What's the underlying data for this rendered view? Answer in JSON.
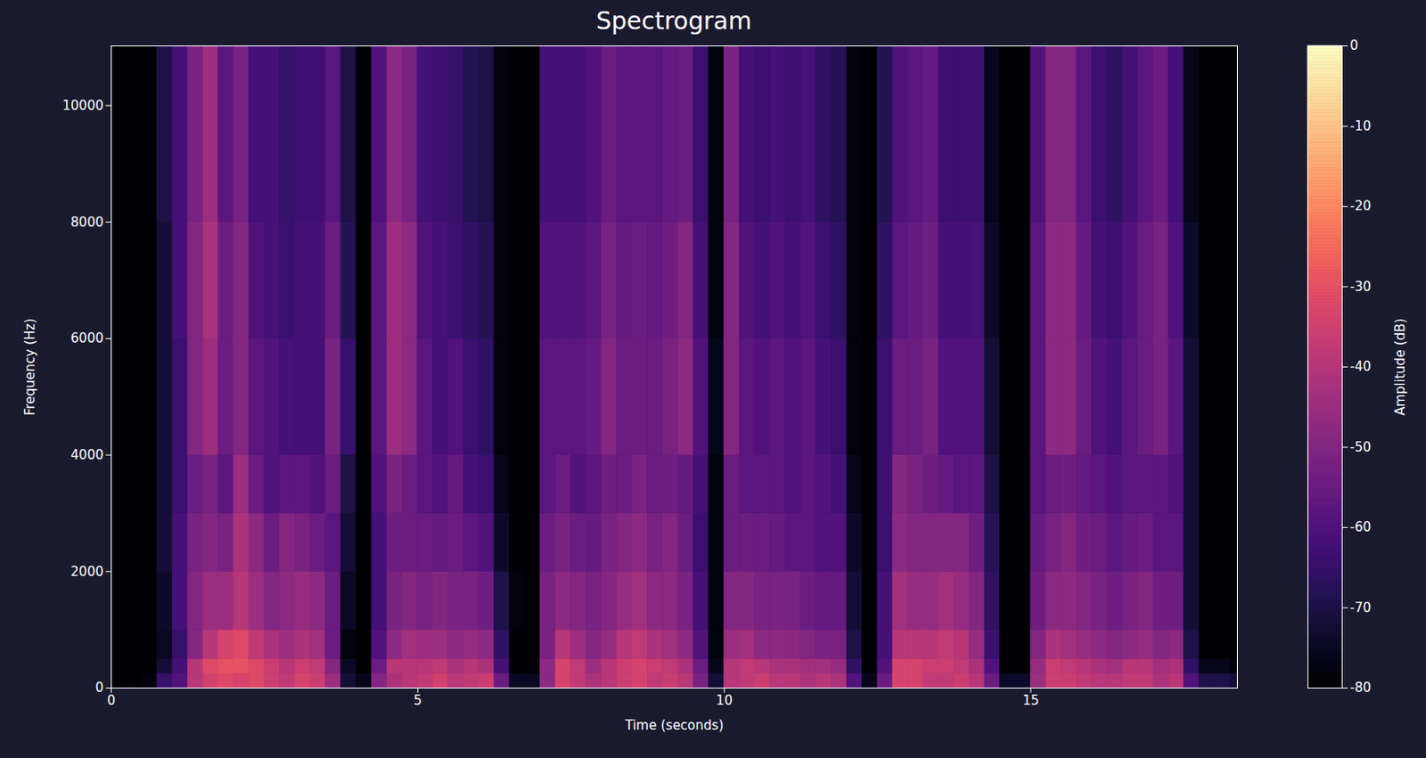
{
  "chart_data": {
    "type": "heatmap",
    "title": "Spectrogram",
    "x_label": "Time (seconds)",
    "y_label": "Frequency (Hz)",
    "xlim": [
      0,
      18.37
    ],
    "ylim": [
      0,
      11025
    ],
    "xticks": [
      0,
      5,
      10,
      15
    ],
    "yticks": [
      0,
      2000,
      4000,
      6000,
      8000,
      10000
    ],
    "color": "magma",
    "clim": [
      -80,
      0
    ],
    "cticks": [
      -80,
      -70,
      -60,
      -50,
      -40,
      -30,
      -20,
      -10,
      0
    ],
    "colorbar_label": "Amplitude (dB)",
    "time_bins": [
      0,
      0.25,
      0.5,
      0.75,
      1,
      1.25,
      1.5,
      1.75,
      2,
      2.25,
      2.5,
      2.75,
      3,
      3.25,
      3.5,
      3.75,
      4,
      4.25,
      4.5,
      4.75,
      5,
      5.25,
      5.5,
      5.75,
      6,
      6.25,
      6.5,
      6.75,
      7,
      7.25,
      7.5,
      7.75,
      8,
      8.25,
      8.5,
      8.75,
      9,
      9.25,
      9.5,
      9.75,
      10,
      10.25,
      10.5,
      10.75,
      11,
      11.25,
      11.5,
      11.75,
      12,
      12.25,
      12.5,
      12.75,
      13,
      13.25,
      13.5,
      13.75,
      14,
      14.25,
      14.5,
      14.75,
      15,
      15.25,
      15.5,
      15.75,
      16,
      16.25,
      16.5,
      16.75,
      17,
      17.25,
      17.5,
      17.75,
      18,
      18.25,
      18.37
    ],
    "freq_bins": [
      0,
      250,
      500,
      1000,
      2000,
      3000,
      4000,
      6000,
      8000,
      11025
    ],
    "values": [
      [
        -80,
        -80,
        -80,
        -80,
        -80,
        -80,
        -80,
        -80,
        -80
      ],
      [
        -80,
        -80,
        -80,
        -80,
        -80,
        -80,
        -80,
        -80,
        -80
      ],
      [
        -78,
        -80,
        -80,
        -80,
        -80,
        -80,
        -80,
        -80,
        -80
      ],
      [
        -65,
        -72,
        -75,
        -74,
        -72,
        -72,
        -72,
        -72,
        -70
      ],
      [
        -60,
        -62,
        -65,
        -62,
        -62,
        -64,
        -64,
        -62,
        -62
      ],
      [
        -40,
        -40,
        -50,
        -50,
        -52,
        -55,
        -50,
        -50,
        -52
      ],
      [
        -35,
        -32,
        -40,
        -45,
        -50,
        -52,
        -45,
        -42,
        -45
      ],
      [
        -32,
        -30,
        -34,
        -45,
        -52,
        -58,
        -55,
        -55,
        -58
      ],
      [
        -34,
        -30,
        -32,
        -40,
        -42,
        -45,
        -50,
        -50,
        -52
      ],
      [
        -32,
        -32,
        -38,
        -45,
        -48,
        -55,
        -58,
        -60,
        -62
      ],
      [
        -36,
        -36,
        -42,
        -50,
        -55,
        -60,
        -60,
        -62,
        -62
      ],
      [
        -38,
        -40,
        -45,
        -48,
        -50,
        -58,
        -62,
        -64,
        -65
      ],
      [
        -34,
        -36,
        -42,
        -46,
        -52,
        -58,
        -62,
        -62,
        -63
      ],
      [
        -36,
        -38,
        -44,
        -48,
        -55,
        -60,
        -62,
        -62,
        -63
      ],
      [
        -45,
        -50,
        -55,
        -55,
        -58,
        -55,
        -52,
        -55,
        -58
      ],
      [
        -72,
        -75,
        -78,
        -75,
        -72,
        -70,
        -65,
        -68,
        -70
      ],
      [
        -76,
        -80,
        -80,
        -80,
        -80,
        -80,
        -80,
        -80,
        -80
      ],
      [
        -50,
        -55,
        -60,
        -62,
        -62,
        -60,
        -58,
        -58,
        -60
      ],
      [
        -42,
        -40,
        -48,
        -52,
        -54,
        -52,
        -45,
        -45,
        -48
      ],
      [
        -40,
        -40,
        -44,
        -50,
        -55,
        -55,
        -48,
        -48,
        -52
      ],
      [
        -38,
        -40,
        -45,
        -52,
        -55,
        -58,
        -58,
        -60,
        -62
      ],
      [
        -35,
        -38,
        -45,
        -50,
        -56,
        -60,
        -62,
        -62,
        -64
      ],
      [
        -40,
        -42,
        -48,
        -52,
        -55,
        -56,
        -60,
        -64,
        -65
      ],
      [
        -38,
        -40,
        -46,
        -52,
        -58,
        -62,
        -64,
        -66,
        -68
      ],
      [
        -36,
        -42,
        -48,
        -54,
        -60,
        -64,
        -66,
        -68,
        -70
      ],
      [
        -55,
        -62,
        -66,
        -70,
        -74,
        -76,
        -78,
        -78,
        -78
      ],
      [
        -75,
        -80,
        -80,
        -78,
        -80,
        -80,
        -80,
        -80,
        -80
      ],
      [
        -75,
        -80,
        -80,
        -80,
        -80,
        -80,
        -80,
        -80,
        -80
      ],
      [
        -48,
        -48,
        -52,
        -52,
        -55,
        -58,
        -58,
        -60,
        -62
      ],
      [
        -34,
        -34,
        -40,
        -48,
        -52,
        -55,
        -58,
        -60,
        -62
      ],
      [
        -38,
        -38,
        -45,
        -50,
        -55,
        -60,
        -58,
        -60,
        -62
      ],
      [
        -42,
        -45,
        -50,
        -52,
        -56,
        -58,
        -56,
        -58,
        -60
      ],
      [
        -40,
        -40,
        -46,
        -50,
        -52,
        -54,
        -50,
        -52,
        -55
      ],
      [
        -36,
        -36,
        -40,
        -46,
        -50,
        -55,
        -55,
        -56,
        -58
      ],
      [
        -34,
        -34,
        -38,
        -44,
        -48,
        -52,
        -55,
        -55,
        -58
      ],
      [
        -38,
        -36,
        -42,
        -48,
        -52,
        -55,
        -55,
        -56,
        -58
      ],
      [
        -36,
        -38,
        -44,
        -48,
        -50,
        -54,
        -52,
        -54,
        -56
      ],
      [
        -40,
        -42,
        -48,
        -52,
        -55,
        -56,
        -48,
        -50,
        -55
      ],
      [
        -52,
        -55,
        -60,
        -62,
        -64,
        -62,
        -60,
        -62,
        -64
      ],
      [
        -72,
        -76,
        -78,
        -78,
        -78,
        -78,
        -76,
        -78,
        -78
      ],
      [
        -40,
        -40,
        -45,
        -50,
        -55,
        -55,
        -50,
        -50,
        -52
      ],
      [
        -38,
        -38,
        -44,
        -50,
        -55,
        -58,
        -58,
        -60,
        -62
      ],
      [
        -36,
        -40,
        -48,
        -52,
        -55,
        -58,
        -60,
        -62,
        -64
      ],
      [
        -40,
        -42,
        -48,
        -52,
        -56,
        -58,
        -58,
        -60,
        -62
      ],
      [
        -40,
        -42,
        -48,
        -52,
        -58,
        -60,
        -60,
        -62,
        -64
      ],
      [
        -42,
        -44,
        -50,
        -55,
        -58,
        -58,
        -58,
        -60,
        -62
      ],
      [
        -40,
        -44,
        -52,
        -56,
        -60,
        -60,
        -62,
        -64,
        -66
      ],
      [
        -42,
        -46,
        -52,
        -56,
        -60,
        -62,
        -64,
        -66,
        -68
      ],
      [
        -60,
        -66,
        -70,
        -72,
        -74,
        -76,
        -78,
        -78,
        -78
      ],
      [
        -76,
        -80,
        -80,
        -80,
        -80,
        -80,
        -80,
        -80,
        -80
      ],
      [
        -55,
        -60,
        -62,
        -62,
        -64,
        -64,
        -64,
        -66,
        -68
      ],
      [
        -34,
        -34,
        -40,
        -44,
        -48,
        -50,
        -55,
        -58,
        -60
      ],
      [
        -34,
        -34,
        -40,
        -46,
        -50,
        -52,
        -55,
        -56,
        -58
      ],
      [
        -38,
        -36,
        -40,
        -46,
        -50,
        -54,
        -52,
        -54,
        -56
      ],
      [
        -38,
        -36,
        -38,
        -44,
        -50,
        -56,
        -60,
        -62,
        -64
      ],
      [
        -36,
        -38,
        -40,
        -46,
        -50,
        -58,
        -60,
        -62,
        -64
      ],
      [
        -40,
        -42,
        -46,
        -50,
        -54,
        -58,
        -60,
        -62,
        -64
      ],
      [
        -55,
        -60,
        -64,
        -66,
        -68,
        -70,
        -72,
        -74,
        -76
      ],
      [
        -74,
        -80,
        -80,
        -80,
        -80,
        -80,
        -80,
        -80,
        -80
      ],
      [
        -74,
        -80,
        -80,
        -80,
        -80,
        -80,
        -80,
        -80,
        -80
      ],
      [
        -45,
        -46,
        -50,
        -54,
        -56,
        -58,
        -58,
        -58,
        -60
      ],
      [
        -36,
        -36,
        -42,
        -48,
        -52,
        -55,
        -48,
        -48,
        -50
      ],
      [
        -36,
        -38,
        -44,
        -48,
        -50,
        -54,
        -48,
        -48,
        -50
      ],
      [
        -38,
        -40,
        -46,
        -50,
        -54,
        -56,
        -55,
        -56,
        -58
      ],
      [
        -40,
        -42,
        -48,
        -52,
        -55,
        -58,
        -60,
        -62,
        -64
      ],
      [
        -40,
        -44,
        -50,
        -54,
        -58,
        -60,
        -62,
        -64,
        -66
      ],
      [
        -38,
        -40,
        -48,
        -52,
        -56,
        -58,
        -58,
        -60,
        -62
      ],
      [
        -38,
        -40,
        -46,
        -50,
        -55,
        -58,
        -55,
        -55,
        -58
      ],
      [
        -42,
        -44,
        -50,
        -54,
        -58,
        -58,
        -52,
        -52,
        -55
      ],
      [
        -40,
        -42,
        -48,
        -54,
        -58,
        -60,
        -58,
        -60,
        -62
      ],
      [
        -60,
        -66,
        -70,
        -72,
        -72,
        -72,
        -72,
        -74,
        -76
      ],
      [
        -70,
        -76,
        -80,
        -80,
        -80,
        -80,
        -80,
        -80,
        -80
      ],
      [
        -70,
        -76,
        -80,
        -80,
        -80,
        -80,
        -80,
        -80,
        -80
      ],
      [
        -72,
        -78,
        -80,
        -80,
        -80,
        -80,
        -80,
        -80,
        -80
      ]
    ]
  }
}
